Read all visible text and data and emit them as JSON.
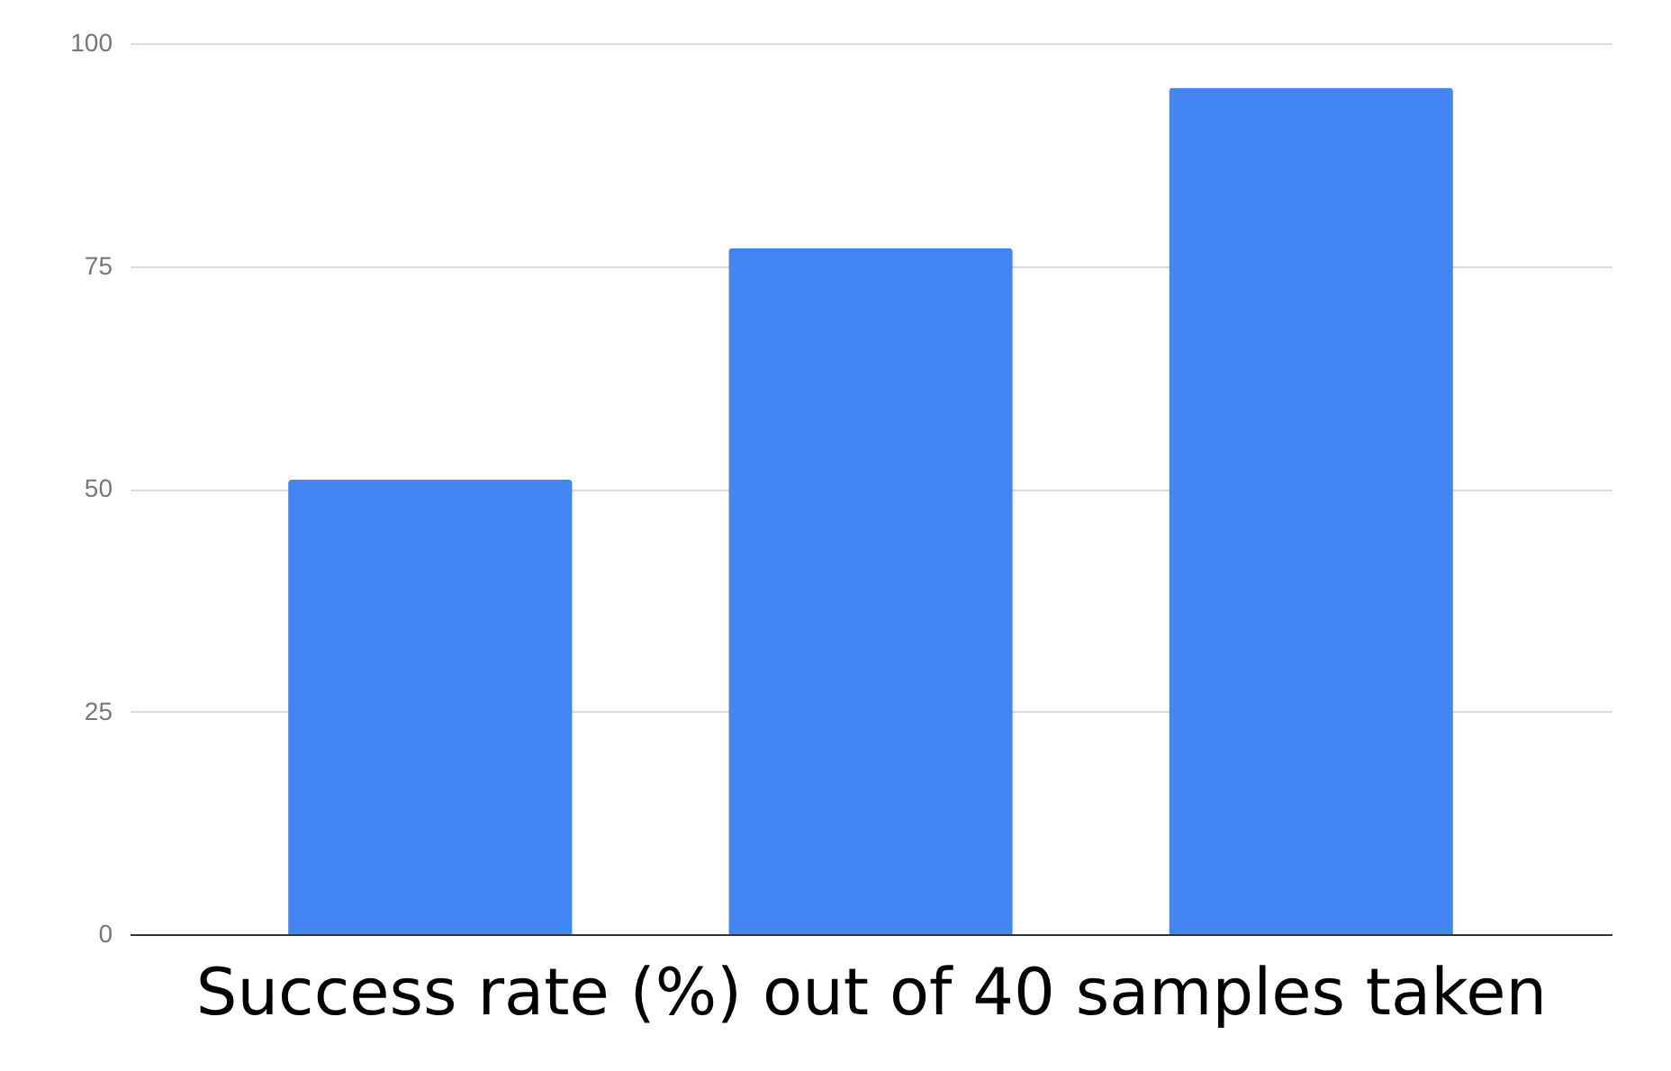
{
  "chart_data": {
    "type": "bar",
    "xlabel": "Success rate (%) out of 40 samples taken",
    "categories": [
      null,
      null,
      null
    ],
    "values": [
      51,
      77,
      95
    ],
    "color": "#4285f4",
    "ylim": [
      0,
      100
    ],
    "yticks": [
      0,
      25,
      50,
      75,
      100
    ],
    "grid": "y"
  }
}
